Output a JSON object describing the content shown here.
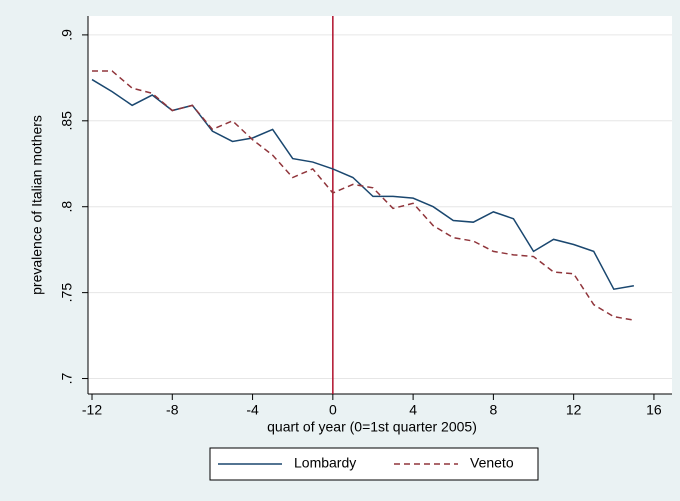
{
  "chart_data": {
    "type": "line",
    "x_label": "quart of year (0=1st quarter 2005)",
    "y_label": "prevalence of Italian mothers",
    "x": [
      -12,
      -11,
      -10,
      -9,
      -8,
      -7,
      -6,
      -5,
      -4,
      -3,
      -2,
      -1,
      0,
      1,
      2,
      3,
      4,
      5,
      6,
      7,
      8,
      9,
      10,
      11,
      12,
      13,
      14,
      15
    ],
    "series": [
      {
        "name": "Lombardy",
        "color": "#1a476f",
        "dash": "solid",
        "values": [
          0.874,
          0.867,
          0.859,
          0.865,
          0.856,
          0.859,
          0.844,
          0.838,
          0.84,
          0.845,
          0.828,
          0.826,
          0.822,
          0.817,
          0.806,
          0.806,
          0.805,
          0.8,
          0.792,
          0.791,
          0.797,
          0.793,
          0.774,
          0.781,
          0.778,
          0.774,
          0.752,
          0.754
        ]
      },
      {
        "name": "Veneto",
        "color": "#90353b",
        "dash": "dashed",
        "values": [
          0.879,
          0.879,
          0.869,
          0.866,
          0.856,
          0.859,
          0.845,
          0.85,
          0.839,
          0.83,
          0.817,
          0.822,
          0.808,
          0.813,
          0.811,
          0.799,
          0.802,
          0.789,
          0.782,
          0.78,
          0.774,
          0.772,
          0.771,
          0.762,
          0.761,
          0.743,
          0.736,
          0.734
        ]
      }
    ],
    "xline": 0,
    "xline_color": "#b0102c",
    "xlim": [
      -12.2,
      16.9
    ],
    "ylim": [
      0.691,
      0.911
    ],
    "xticks": [
      -12,
      -8,
      -4,
      0,
      4,
      8,
      12,
      16
    ],
    "yticks": [
      {
        "value": 0.7,
        "label": ".7"
      },
      {
        "value": 0.75,
        "label": ".75"
      },
      {
        "value": 0.8,
        "label": ".8"
      },
      {
        "value": 0.85,
        "label": ".85"
      },
      {
        "value": 0.9,
        "label": ".9"
      }
    ],
    "grid": true,
    "legend": "bottom"
  }
}
